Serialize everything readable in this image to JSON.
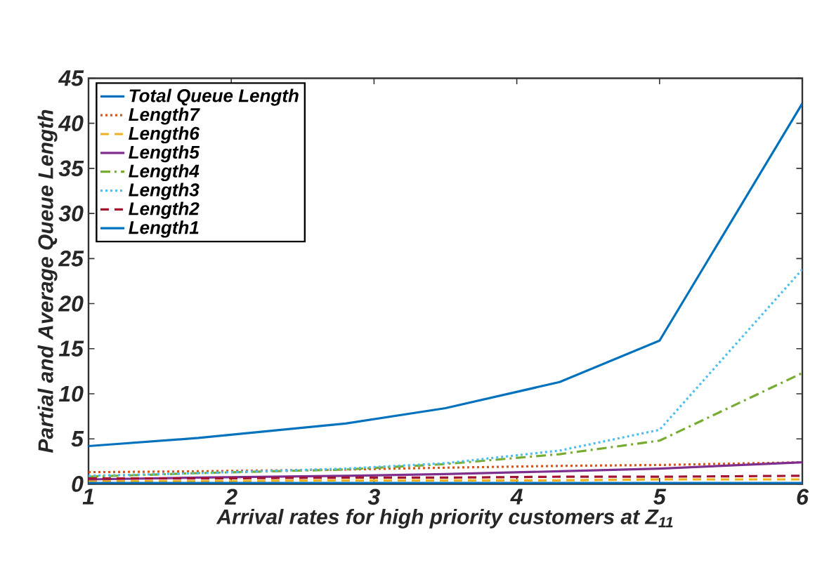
{
  "chart_data": {
    "type": "line",
    "xlabel": "Arrival rates for high priority customers at Z$_{11}$",
    "ylabel": "Partial and Average Queue Length",
    "x": [
      1,
      1.77,
      2.8,
      3.5,
      4.3,
      5,
      6
    ],
    "series": [
      {
        "name": "Total Queue Length",
        "color": "#0072bd",
        "line_style": "solid",
        "values": [
          4.2,
          5.1,
          6.7,
          8.4,
          11.3,
          15.9,
          42.2
        ]
      },
      {
        "name": "Length7",
        "color": "#d95319",
        "line_style": "dotted",
        "values": [
          1.3,
          1.4,
          1.6,
          1.8,
          2.0,
          2.1,
          2.4
        ]
      },
      {
        "name": "Length6",
        "color": "#edb120",
        "line_style": "dashed",
        "values": [
          0.3,
          0.3,
          0.4,
          0.4,
          0.4,
          0.5,
          0.5
        ]
      },
      {
        "name": "Length5",
        "color": "#7e2f8e",
        "line_style": "solid",
        "values": [
          0.5,
          0.7,
          0.9,
          1.1,
          1.4,
          1.7,
          2.4
        ]
      },
      {
        "name": "Length4",
        "color": "#77ac30",
        "line_style": "dashdot",
        "values": [
          0.8,
          1.2,
          1.6,
          2.2,
          3.3,
          4.8,
          12.3
        ]
      },
      {
        "name": "Length3",
        "color": "#4dbeee",
        "line_style": "dotted",
        "values": [
          0.9,
          1.2,
          1.7,
          2.3,
          3.7,
          6.0,
          23.8
        ]
      },
      {
        "name": "Length2",
        "color": "#a2142f",
        "line_style": "dashed",
        "values": [
          0.6,
          0.6,
          0.7,
          0.7,
          0.8,
          0.8,
          0.9
        ]
      },
      {
        "name": "Length1",
        "color": "#0072bd",
        "line_style": "solid",
        "values": [
          0.1,
          0.1,
          0.1,
          0.1,
          0.1,
          0.1,
          0.1
        ]
      }
    ],
    "xlim": [
      1,
      6
    ],
    "xticks": [
      1,
      2,
      3,
      4,
      5,
      6
    ],
    "ylim": [
      0,
      45
    ],
    "yticks": [
      0,
      5,
      10,
      15,
      20,
      25,
      30,
      35,
      40,
      45
    ],
    "legend": "top left",
    "marker": "none",
    "grid": false
  }
}
